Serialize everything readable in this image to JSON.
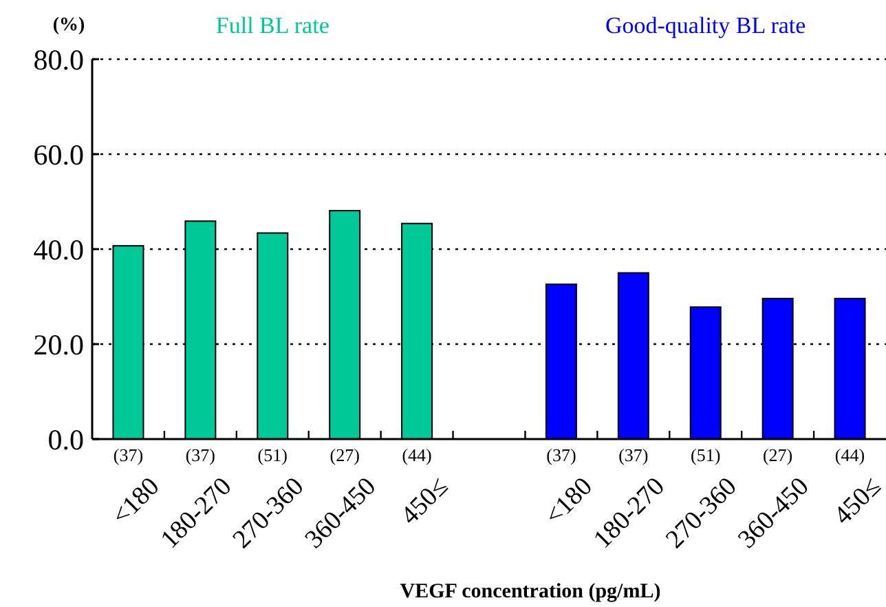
{
  "chart_data": {
    "type": "bar",
    "xlabel": "VEGF concentration (pg/mL)",
    "ylabel": "(%)",
    "categories": [
      "(37)\n<180",
      "(37)\n180-270",
      "(51)\n270-360",
      "(27)\n360-450",
      "(44)\n450≤",
      null,
      "(37)\n<180",
      "(37)\n180-270",
      "(51)\n270-360",
      "(27)\n360-450",
      "(44)\n450≤"
    ],
    "series": [
      {
        "name": "Full BL rate",
        "color": "#00c896",
        "values": [
          40.7,
          45.9,
          43.4,
          48.1,
          45.4,
          null,
          null,
          null,
          null,
          null,
          null
        ]
      },
      {
        "name": "Good-quality BL rate",
        "color": "#0000ff",
        "values": [
          null,
          null,
          null,
          null,
          null,
          null,
          32.6,
          35.0,
          27.8,
          29.6,
          29.6
        ]
      }
    ],
    "ylim": [
      0,
      80
    ],
    "yticks": [
      {
        "value": 0,
        "label": "0.0"
      },
      {
        "value": 20,
        "label": "20.0"
      },
      {
        "value": 40,
        "label": "40.0"
      },
      {
        "value": 60,
        "label": "60.0"
      },
      {
        "value": 80,
        "label": "80.0"
      }
    ],
    "grid": "y"
  }
}
